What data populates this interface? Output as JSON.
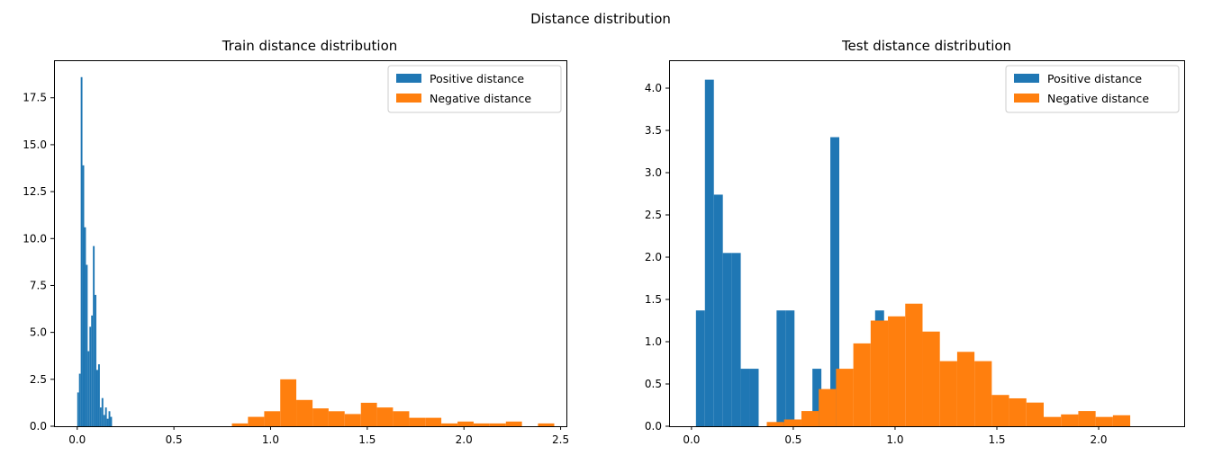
{
  "figure": {
    "suptitle": "Distance distribution"
  },
  "chart_data": [
    {
      "type": "bar",
      "subtype": "histogram",
      "title": "Train distance distribution",
      "xlabel": "",
      "ylabel": "",
      "xlim": [
        -0.12,
        2.53
      ],
      "ylim": [
        0,
        19.5
      ],
      "xticks": [
        0.0,
        0.5,
        1.0,
        1.5,
        2.0,
        2.5
      ],
      "xtick_labels": [
        "0.0",
        "0.5",
        "1.0",
        "1.5",
        "2.0",
        "2.5"
      ],
      "yticks": [
        0.0,
        2.5,
        5.0,
        7.5,
        10.0,
        12.5,
        15.0,
        17.5
      ],
      "ytick_labels": [
        "0.0",
        "2.5",
        "5.0",
        "7.5",
        "10.0",
        "12.5",
        "15.0",
        "17.5"
      ],
      "grid": false,
      "legend": {
        "position": "top-right",
        "entries": [
          "Positive distance",
          "Negative distance"
        ]
      },
      "series": [
        {
          "name": "Positive distance",
          "color": "#1f77b4",
          "bins": [
            [
              0.0,
              0.009,
              1.8
            ],
            [
              0.009,
              0.018,
              2.8
            ],
            [
              0.018,
              0.027,
              18.6
            ],
            [
              0.027,
              0.036,
              13.9
            ],
            [
              0.036,
              0.045,
              10.6
            ],
            [
              0.045,
              0.054,
              8.6
            ],
            [
              0.054,
              0.063,
              4.0
            ],
            [
              0.063,
              0.072,
              5.3
            ],
            [
              0.072,
              0.081,
              5.9
            ],
            [
              0.081,
              0.09,
              9.6
            ],
            [
              0.09,
              0.099,
              7.0
            ],
            [
              0.099,
              0.108,
              3.0
            ],
            [
              0.108,
              0.117,
              3.3
            ],
            [
              0.117,
              0.126,
              1.0
            ],
            [
              0.126,
              0.135,
              1.5
            ],
            [
              0.135,
              0.144,
              0.6
            ],
            [
              0.144,
              0.153,
              1.0
            ],
            [
              0.153,
              0.162,
              0.4
            ],
            [
              0.162,
              0.171,
              0.8
            ],
            [
              0.171,
              0.18,
              0.5
            ]
          ]
        },
        {
          "name": "Negative distance",
          "color": "#ff7f0e",
          "bins": [
            [
              0.8,
              0.883,
              0.15
            ],
            [
              0.883,
              0.967,
              0.5
            ],
            [
              0.967,
              1.05,
              0.8
            ],
            [
              1.05,
              1.133,
              2.5
            ],
            [
              1.133,
              1.217,
              1.4
            ],
            [
              1.217,
              1.3,
              0.95
            ],
            [
              1.3,
              1.383,
              0.8
            ],
            [
              1.383,
              1.467,
              0.65
            ],
            [
              1.467,
              1.55,
              1.25
            ],
            [
              1.55,
              1.633,
              1.0
            ],
            [
              1.633,
              1.717,
              0.8
            ],
            [
              1.717,
              1.8,
              0.45
            ],
            [
              1.8,
              1.883,
              0.45
            ],
            [
              1.883,
              1.967,
              0.15
            ],
            [
              1.967,
              2.05,
              0.25
            ],
            [
              2.05,
              2.133,
              0.15
            ],
            [
              2.133,
              2.217,
              0.15
            ],
            [
              2.217,
              2.3,
              0.25
            ],
            [
              2.3,
              2.383,
              0.0
            ],
            [
              2.383,
              2.467,
              0.15
            ]
          ]
        }
      ]
    },
    {
      "type": "bar",
      "subtype": "histogram",
      "title": "Test distance distribution",
      "xlabel": "",
      "ylabel": "",
      "xlim": [
        -0.11,
        2.42
      ],
      "ylim": [
        0,
        4.33
      ],
      "xticks": [
        0.0,
        0.5,
        1.0,
        1.5,
        2.0
      ],
      "xtick_labels": [
        "0.0",
        "0.5",
        "1.0",
        "1.5",
        "2.0"
      ],
      "yticks": [
        0.0,
        0.5,
        1.0,
        1.5,
        2.0,
        2.5,
        3.0,
        3.5,
        4.0
      ],
      "ytick_labels": [
        "0.0",
        "0.5",
        "1.0",
        "1.5",
        "2.0",
        "2.5",
        "3.0",
        "3.5",
        "4.0"
      ],
      "grid": false,
      "legend": {
        "position": "top-right",
        "entries": [
          "Positive distance",
          "Negative distance"
        ]
      },
      "series": [
        {
          "name": "Positive distance",
          "color": "#1f77b4",
          "bins": [
            [
              0.022,
              0.066,
              1.37
            ],
            [
              0.066,
              0.11,
              4.1
            ],
            [
              0.11,
              0.154,
              2.74
            ],
            [
              0.154,
              0.198,
              2.05
            ],
            [
              0.198,
              0.242,
              2.05
            ],
            [
              0.242,
              0.286,
              0.68
            ],
            [
              0.286,
              0.33,
              0.68
            ],
            [
              0.33,
              0.374,
              0.0
            ],
            [
              0.374,
              0.418,
              0.0
            ],
            [
              0.418,
              0.462,
              1.37
            ],
            [
              0.462,
              0.506,
              1.37
            ],
            [
              0.506,
              0.55,
              0.0
            ],
            [
              0.55,
              0.594,
              0.0
            ],
            [
              0.594,
              0.638,
              0.68
            ],
            [
              0.638,
              0.682,
              0.0
            ],
            [
              0.682,
              0.726,
              3.42
            ],
            [
              0.726,
              0.77,
              0.0
            ],
            [
              0.77,
              0.814,
              0.0
            ],
            [
              0.814,
              0.858,
              0.0
            ],
            [
              0.858,
              0.902,
              0.0
            ],
            [
              0.902,
              0.946,
              1.37
            ]
          ]
        },
        {
          "name": "Negative distance",
          "color": "#ff7f0e",
          "bins": [
            [
              0.37,
              0.455,
              0.05
            ],
            [
              0.455,
              0.54,
              0.08
            ],
            [
              0.54,
              0.625,
              0.18
            ],
            [
              0.625,
              0.71,
              0.44
            ],
            [
              0.71,
              0.795,
              0.68
            ],
            [
              0.795,
              0.88,
              0.98
            ],
            [
              0.88,
              0.965,
              1.25
            ],
            [
              0.965,
              1.05,
              1.3
            ],
            [
              1.05,
              1.135,
              1.45
            ],
            [
              1.135,
              1.22,
              1.12
            ],
            [
              1.22,
              1.305,
              0.77
            ],
            [
              1.305,
              1.39,
              0.88
            ],
            [
              1.39,
              1.475,
              0.77
            ],
            [
              1.475,
              1.56,
              0.37
            ],
            [
              1.56,
              1.645,
              0.33
            ],
            [
              1.645,
              1.73,
              0.28
            ],
            [
              1.73,
              1.815,
              0.11
            ],
            [
              1.815,
              1.9,
              0.14
            ],
            [
              1.9,
              1.985,
              0.18
            ],
            [
              1.985,
              2.07,
              0.11
            ],
            [
              2.07,
              2.155,
              0.13
            ],
            [
              2.155,
              2.24,
              0.0
            ]
          ]
        }
      ]
    }
  ]
}
